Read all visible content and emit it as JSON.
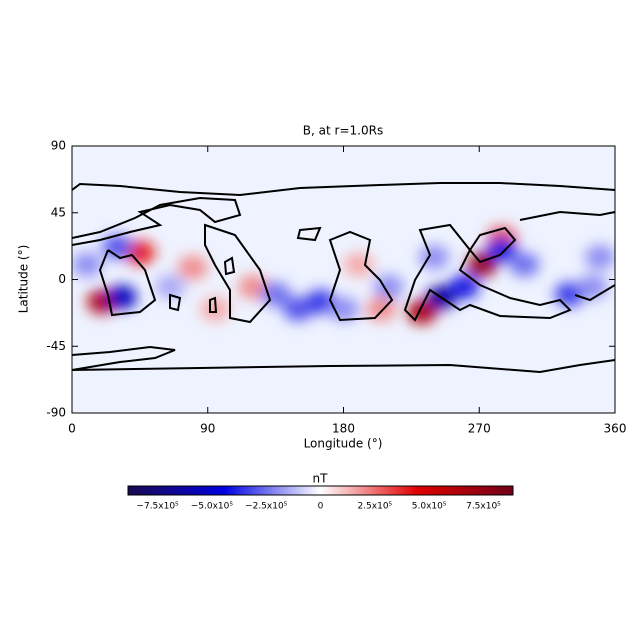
{
  "chart_data": {
    "type": "heatmap",
    "title": "B, at r=1.0Rs",
    "x_label": "Longitude (°)",
    "y_label": "Latitude (°)",
    "xlim": [
      0,
      360
    ],
    "xticks": [
      0,
      90,
      180,
      270,
      360
    ],
    "ylim": [
      -90,
      90
    ],
    "yticks": [
      -90,
      -45,
      0,
      45,
      90
    ],
    "x": [
      20,
      33,
      45,
      30,
      80,
      65,
      95,
      120,
      150,
      165,
      180,
      135,
      210,
      205,
      232,
      245,
      260,
      272,
      285,
      285,
      300,
      240,
      330,
      345,
      350,
      190,
      10
    ],
    "y": [
      -15,
      -12,
      18,
      22,
      8,
      -5,
      -20,
      -5,
      -20,
      -15,
      -20,
      -10,
      -5,
      -20,
      -22,
      -12,
      -5,
      10,
      28,
      20,
      10,
      15,
      -10,
      -5,
      15,
      10,
      10
    ],
    "values": [
      650000,
      -550000,
      400000,
      -300000,
      200000,
      -150000,
      150000,
      200000,
      -300000,
      -350000,
      -200000,
      -250000,
      -200000,
      200000,
      650000,
      -650000,
      -400000,
      750000,
      300000,
      -400000,
      -250000,
      -200000,
      -350000,
      -200000,
      -200000,
      150000,
      -200000
    ],
    "colorbar_label": "nT",
    "clim": [
      -886000,
      886000
    ],
    "colorscale": [
      "#1a0a50",
      "#0000e0",
      "#ffffff",
      "#e00000",
      "#700018"
    ],
    "cticks": [
      {
        "value": -750000,
        "label": "−7.5x10⁵"
      },
      {
        "value": -500000,
        "label": "−5.0x10⁵"
      },
      {
        "value": -250000,
        "label": "−2.5x10⁵"
      },
      0,
      {
        "value": 250000,
        "label": "2.5x10⁵"
      },
      {
        "value": 500000,
        "label": "5.0x10⁵"
      },
      {
        "value": 750000,
        "label": "7.5x10⁵"
      }
    ]
  }
}
